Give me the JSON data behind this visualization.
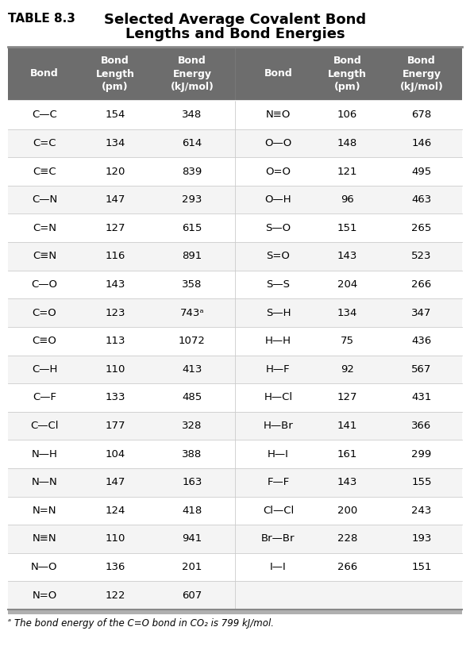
{
  "title_prefix": "TABLE 8.3",
  "title_line1": "Selected Average Covalent Bond",
  "title_line2": "Lengths and Bond Energies",
  "header_bg": "#6d6d6d",
  "header_fg": "#ffffff",
  "divider_color": "#cccccc",
  "outer_border_top": "#aaaaaa",
  "outer_border_bottom": "#999999",
  "col_headers": [
    "Bond",
    "Bond\nLength\n(pm)",
    "Bond\nEnergy\n(kJ/mol)",
    "Bond",
    "Bond\nLength\n(pm)",
    "Bond\nEnergy\n(kJ/mol)"
  ],
  "left_data": [
    [
      "C—C",
      "154",
      "348"
    ],
    [
      "C=C",
      "134",
      "614"
    ],
    [
      "C≡C",
      "120",
      "839"
    ],
    [
      "C—N",
      "147",
      "293"
    ],
    [
      "C=N",
      "127",
      "615"
    ],
    [
      "C≡N",
      "116",
      "891"
    ],
    [
      "C—O",
      "143",
      "358"
    ],
    [
      "C=O",
      "123",
      "743ᵃ"
    ],
    [
      "C≡O",
      "113",
      "1072"
    ],
    [
      "C—H",
      "110",
      "413"
    ],
    [
      "C—F",
      "133",
      "485"
    ],
    [
      "C—Cl",
      "177",
      "328"
    ],
    [
      "N—H",
      "104",
      "388"
    ],
    [
      "N—N",
      "147",
      "163"
    ],
    [
      "N=N",
      "124",
      "418"
    ],
    [
      "N≡N",
      "110",
      "941"
    ],
    [
      "N—O",
      "136",
      "201"
    ],
    [
      "N=O",
      "122",
      "607"
    ]
  ],
  "right_data": [
    [
      "N≡O",
      "106",
      "678"
    ],
    [
      "O—O",
      "148",
      "146"
    ],
    [
      "O=O",
      "121",
      "495"
    ],
    [
      "O—H",
      "96",
      "463"
    ],
    [
      "S—O",
      "151",
      "265"
    ],
    [
      "S=O",
      "143",
      "523"
    ],
    [
      "S—S",
      "204",
      "266"
    ],
    [
      "S—H",
      "134",
      "347"
    ],
    [
      "H—H",
      "75",
      "436"
    ],
    [
      "H—F",
      "92",
      "567"
    ],
    [
      "H—Cl",
      "127",
      "431"
    ],
    [
      "H—Br",
      "141",
      "366"
    ],
    [
      "H—I",
      "161",
      "299"
    ],
    [
      "F—F",
      "143",
      "155"
    ],
    [
      "Cl—Cl",
      "200",
      "243"
    ],
    [
      "Br—Br",
      "228",
      "193"
    ],
    [
      "I—I",
      "266",
      "151"
    ],
    [
      "",
      "",
      ""
    ]
  ],
  "footnote_a": "ᵃ",
  "footnote_text": "The bond energy of the C=O bond in CO₂ is 799 kJ/mol.",
  "title_prefix_fontsize": 11,
  "title_fontsize": 13,
  "header_fontsize": 9,
  "data_fontsize": 9.5,
  "footnote_fontsize": 8.5,
  "bg_color": "#ffffff"
}
